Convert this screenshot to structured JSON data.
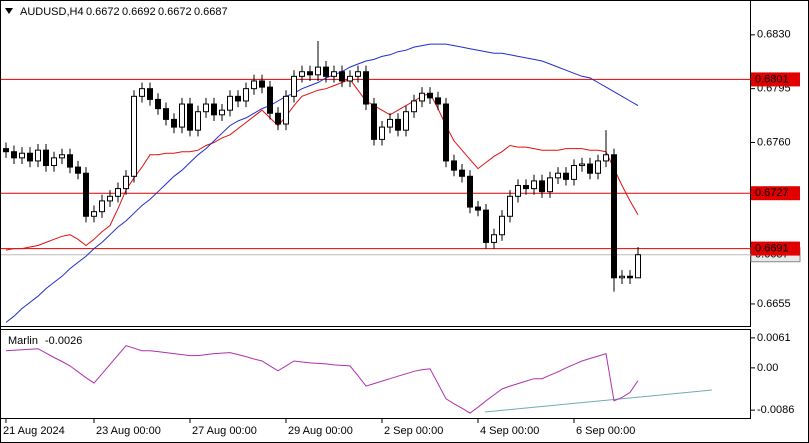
{
  "chart_data": {
    "type": "candlestick",
    "title": "AUDUSD,H4",
    "categories": [
      "21 Aug 2024",
      null,
      null,
      null,
      null,
      null,
      null,
      null,
      null,
      null,
      null,
      "23 Aug 00:00",
      null,
      null,
      null,
      null,
      null,
      null,
      null,
      null,
      null,
      null,
      null,
      "27 Aug 00:00",
      null,
      null,
      null,
      null,
      null,
      null,
      null,
      null,
      null,
      null,
      null,
      "29 Aug 00:00",
      null,
      null,
      null,
      null,
      null,
      null,
      null,
      null,
      null,
      null,
      null,
      "2 Sep 00:00",
      null,
      null,
      null,
      null,
      null,
      null,
      null,
      null,
      null,
      null,
      null,
      "4 Sep 00:00",
      null,
      null,
      null,
      null,
      null,
      null,
      null,
      null,
      null,
      null,
      null,
      "6 Sep 00:00",
      null,
      null,
      null,
      null,
      null,
      null,
      null,
      null
    ],
    "open": [
      0.6756,
      0.6754,
      0.675,
      0.6753,
      0.6748,
      0.6755,
      0.6745,
      0.675,
      0.6752,
      0.6744,
      0.674,
      0.6712,
      0.6715,
      0.6722,
      0.6725,
      0.673,
      0.6738,
      0.679,
      0.6795,
      0.6788,
      0.6782,
      0.6775,
      0.677,
      0.6785,
      0.6768,
      0.678,
      0.6785,
      0.6778,
      0.6781,
      0.679,
      0.6787,
      0.6795,
      0.68,
      0.6796,
      0.6779,
      0.6772,
      0.679,
      0.6803,
      0.6806,
      0.6804,
      0.6809,
      0.6803,
      0.6806,
      0.68,
      0.6803,
      0.6806,
      0.6785,
      0.6762,
      0.677,
      0.6775,
      0.6768,
      0.678,
      0.6787,
      0.6792,
      0.6789,
      0.6785,
      0.6748,
      0.6742,
      0.6738,
      0.6718,
      0.6716,
      0.6695,
      0.67,
      0.6712,
      0.6725,
      0.6732,
      0.673,
      0.6735,
      0.6728,
      0.6737,
      0.674,
      0.6736,
      0.6745,
      0.6746,
      0.674,
      0.6748,
      0.6752,
      0.6672,
      0.6673,
      0.6672
    ],
    "high": [
      0.676,
      0.6758,
      0.6757,
      0.6757,
      0.6759,
      0.6759,
      0.6754,
      0.6756,
      0.6756,
      0.6748,
      0.6744,
      0.6719,
      0.6726,
      0.6729,
      0.6734,
      0.6742,
      0.6794,
      0.6799,
      0.6799,
      0.6792,
      0.6786,
      0.6779,
      0.6789,
      0.6789,
      0.6784,
      0.6789,
      0.6789,
      0.6785,
      0.6794,
      0.6794,
      0.6799,
      0.6804,
      0.6804,
      0.68,
      0.6783,
      0.6794,
      0.6807,
      0.681,
      0.681,
      0.6826,
      0.6813,
      0.681,
      0.681,
      0.6807,
      0.681,
      0.681,
      0.6789,
      0.6774,
      0.6779,
      0.6779,
      0.6784,
      0.6791,
      0.6796,
      0.6796,
      0.6793,
      0.6789,
      0.6752,
      0.6746,
      0.6742,
      0.6722,
      0.672,
      0.6704,
      0.6716,
      0.6729,
      0.6736,
      0.6736,
      0.6739,
      0.6739,
      0.6741,
      0.6744,
      0.6744,
      0.6749,
      0.675,
      0.675,
      0.6752,
      0.6768,
      0.6756,
      0.6677,
      0.6677,
      0.6692
    ],
    "low": [
      0.675,
      0.6746,
      0.6746,
      0.6744,
      0.6744,
      0.6741,
      0.6741,
      0.6746,
      0.674,
      0.6736,
      0.6708,
      0.6708,
      0.6711,
      0.6718,
      0.6721,
      0.6726,
      0.6734,
      0.6786,
      0.6784,
      0.6778,
      0.6771,
      0.6766,
      0.6766,
      0.6764,
      0.6764,
      0.6776,
      0.6774,
      0.6774,
      0.6777,
      0.6783,
      0.6783,
      0.6791,
      0.6792,
      0.6775,
      0.6768,
      0.6768,
      0.6786,
      0.6799,
      0.68,
      0.68,
      0.6799,
      0.6799,
      0.6796,
      0.6796,
      0.6799,
      0.6781,
      0.6758,
      0.6758,
      0.6766,
      0.6764,
      0.6764,
      0.6776,
      0.6783,
      0.6785,
      0.6781,
      0.6744,
      0.6738,
      0.6734,
      0.6714,
      0.6712,
      0.6691,
      0.6691,
      0.6696,
      0.6708,
      0.6721,
      0.6726,
      0.6726,
      0.6724,
      0.6724,
      0.6733,
      0.6732,
      0.6732,
      0.6741,
      0.6736,
      0.6736,
      0.6744,
      0.6663,
      0.6668,
      0.6668,
      0.6672
    ],
    "close": [
      0.6754,
      0.675,
      0.6753,
      0.6748,
      0.6755,
      0.6745,
      0.675,
      0.6752,
      0.6744,
      0.674,
      0.6712,
      0.6715,
      0.6722,
      0.6725,
      0.673,
      0.6738,
      0.679,
      0.6795,
      0.6788,
      0.6782,
      0.6775,
      0.677,
      0.6785,
      0.6768,
      0.678,
      0.6785,
      0.6778,
      0.6781,
      0.679,
      0.6787,
      0.6795,
      0.68,
      0.6796,
      0.6779,
      0.6772,
      0.679,
      0.6803,
      0.6806,
      0.6804,
      0.6809,
      0.6803,
      0.6806,
      0.68,
      0.6803,
      0.6806,
      0.6785,
      0.6762,
      0.677,
      0.6775,
      0.6768,
      0.678,
      0.6787,
      0.6792,
      0.6789,
      0.6785,
      0.6748,
      0.6742,
      0.6738,
      0.6718,
      0.6716,
      0.6695,
      0.67,
      0.6712,
      0.6725,
      0.6732,
      0.673,
      0.6735,
      0.6728,
      0.6737,
      0.674,
      0.6736,
      0.6745,
      0.6746,
      0.674,
      0.6748,
      0.6752,
      0.6672,
      0.6673,
      0.6672,
      0.6687
    ],
    "series": [
      {
        "color": "#e01010",
        "values": [
          0.669,
          0.6691,
          0.6691,
          0.6692,
          0.6693,
          0.6695,
          0.6697,
          0.6699,
          0.67,
          0.6697,
          0.6693,
          0.6697,
          0.6702,
          0.6706,
          0.6717,
          0.6729,
          0.6737,
          0.6744,
          0.6752,
          0.6752,
          0.6753,
          0.6753,
          0.6754,
          0.6754,
          0.6755,
          0.6758,
          0.676,
          0.6763,
          0.6765,
          0.6769,
          0.6773,
          0.6777,
          0.6781,
          0.6776,
          0.6771,
          0.6777,
          0.6784,
          0.679,
          0.6792,
          0.6794,
          0.6795,
          0.6797,
          0.6799,
          0.6801,
          0.6794,
          0.6787,
          0.6784,
          0.6781,
          0.6778,
          0.6781,
          0.6784,
          0.6787,
          0.679,
          0.6792,
          0.6782,
          0.6771,
          0.6761,
          0.6755,
          0.6749,
          0.6743,
          0.6747,
          0.6751,
          0.6754,
          0.6758,
          0.6757,
          0.6757,
          0.6756,
          0.6755,
          0.6755,
          0.6755,
          0.6756,
          0.6756,
          0.6756,
          0.6755,
          0.6755,
          0.6754,
          0.6743,
          0.6732,
          0.6722,
          0.6713
        ]
      },
      {
        "color": "#1f2ecc",
        "values": [
          0.6643,
          0.6647,
          0.6652,
          0.6656,
          0.666,
          0.6665,
          0.6669,
          0.6673,
          0.6678,
          0.6682,
          0.6686,
          0.6691,
          0.6695,
          0.67,
          0.6705,
          0.6709,
          0.6714,
          0.6719,
          0.6723,
          0.6728,
          0.6733,
          0.6738,
          0.6742,
          0.6747,
          0.6752,
          0.6756,
          0.6761,
          0.6766,
          0.6771,
          0.6774,
          0.6776,
          0.6779,
          0.6782,
          0.6784,
          0.6787,
          0.679,
          0.6792,
          0.6795,
          0.6797,
          0.6799,
          0.6802,
          0.6804,
          0.6806,
          0.6809,
          0.6811,
          0.6813,
          0.6814,
          0.6816,
          0.6817,
          0.6819,
          0.682,
          0.6822,
          0.6823,
          0.6824,
          0.6824,
          0.6824,
          0.6823,
          0.6822,
          0.6821,
          0.682,
          0.6819,
          0.6818,
          0.6818,
          0.6817,
          0.6816,
          0.6815,
          0.6814,
          0.6813,
          0.6811,
          0.6809,
          0.6807,
          0.6805,
          0.6803,
          0.6802,
          0.6799,
          0.6796,
          0.6793,
          0.679,
          0.6787,
          0.6784
        ]
      }
    ],
    "levels": [
      {
        "value": 0.6801,
        "color": "#e00000"
      },
      {
        "value": 0.6727,
        "color": "#e00000"
      },
      {
        "value": 0.6691,
        "color": "#e00000"
      }
    ],
    "ylim": [
      0.664,
      0.6852
    ],
    "yticks": [
      {
        "value": 0.683,
        "label": "0.6830"
      },
      0.6795,
      {
        "value": 0.676,
        "label": "0.6760"
      },
      0.6655
    ],
    "indicator": {
      "type": "line",
      "title": "Marlin",
      "color": "#b030b0",
      "values": [
        0.0035,
        0.0036,
        0.0037,
        0.0038,
        0.0039,
        0.003,
        0.0021,
        0.0013,
        0.0004,
        -0.0008,
        -0.002,
        -0.0031,
        -0.0012,
        0.0007,
        0.0026,
        0.0045,
        0.004,
        0.0035,
        0.0035,
        0.0033,
        0.0031,
        0.0029,
        0.0027,
        0.0025,
        0.0025,
        0.0027,
        0.0029,
        0.003,
        0.0031,
        0.0027,
        0.0023,
        0.0018,
        0.0014,
        0.0004,
        -0.0006,
        0.0004,
        0.0014,
        0.0012,
        0.001,
        0.0009,
        0.0008,
        0.0006,
        0.0005,
        0.0004,
        -0.0016,
        -0.0037,
        -0.0032,
        -0.0027,
        -0.0022,
        -0.0017,
        -0.0012,
        -0.0007,
        -0.0004,
        -0.0002,
        -0.0032,
        -0.0063,
        -0.0073,
        -0.0082,
        -0.0092,
        -0.008,
        -0.0067,
        -0.0055,
        -0.0043,
        -0.0037,
        -0.0032,
        -0.0027,
        -0.0022,
        -0.0022,
        -0.0015,
        -0.0008,
        0,
        0.0007,
        0.0014,
        0.0019,
        0.0024,
        0.0029,
        -0.0067,
        -0.006,
        -0.005,
        -0.0026
      ],
      "ylim": [
        -0.0104,
        0.0077
      ],
      "yticks": [
        0.0061,
        {
          "value": 0,
          "label": "0.00"
        },
        -0.0086
      ]
    }
  }
}
